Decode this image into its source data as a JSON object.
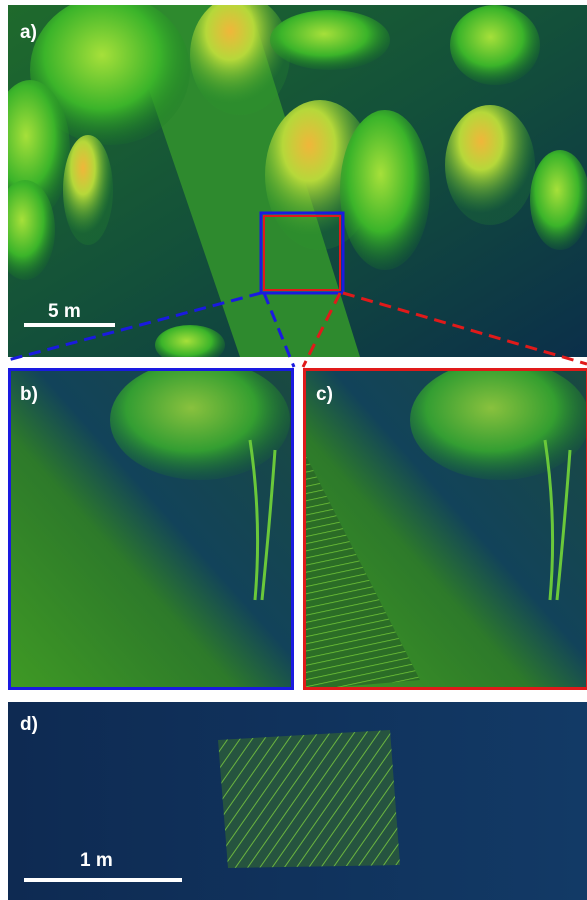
{
  "panels": [
    {
      "label": "a)",
      "scale_bar": "5 m"
    },
    {
      "label": "b)"
    },
    {
      "label": "c)"
    },
    {
      "label": "d)",
      "scale_bar": "1 m"
    }
  ]
}
